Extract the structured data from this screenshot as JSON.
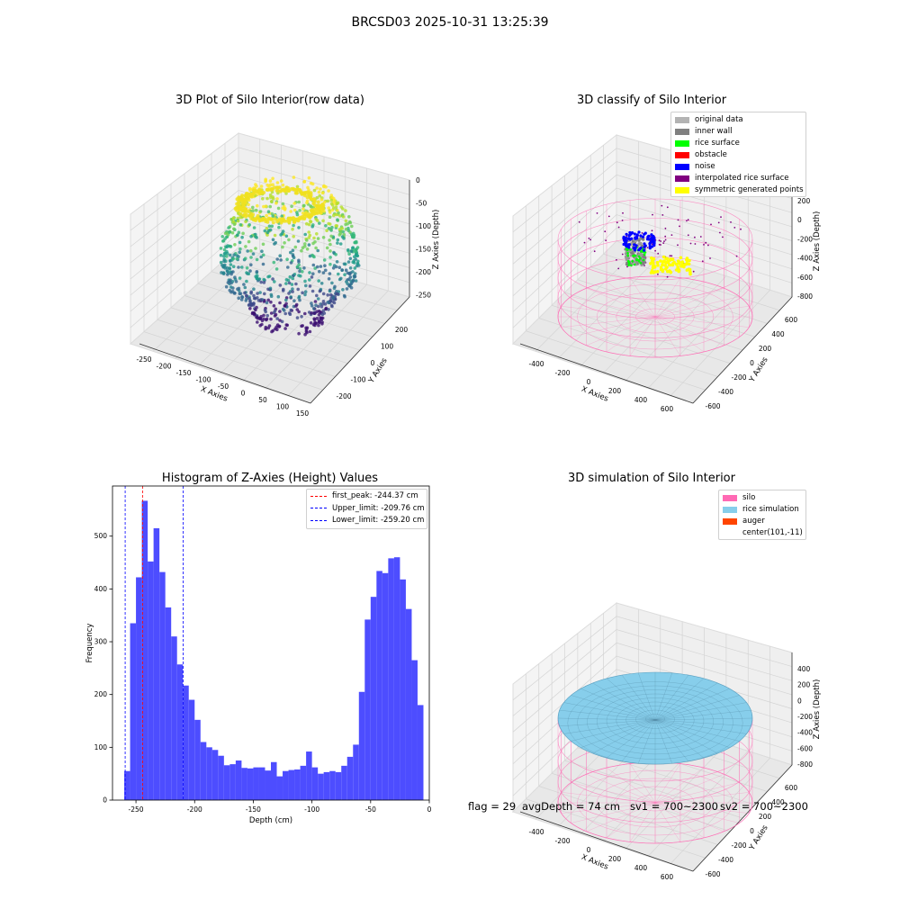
{
  "suptitle": "BRCSD03 2025-10-31 13:25:39",
  "panels": {
    "raw": {
      "title": "3D Plot of Silo Interior(row data)",
      "xlabel": "X Axies",
      "ylabel": "Y Axies",
      "zlabel": "Z Axies (Depth)",
      "xticks": [
        "-250",
        "-200",
        "-150",
        "-100",
        "-50",
        "0",
        "50",
        "100",
        "150"
      ],
      "yticks": [
        "200",
        "100",
        "0",
        "-100",
        "-200"
      ],
      "zticks": [
        "0",
        "-50",
        "-100",
        "-150",
        "-200",
        "-250"
      ]
    },
    "classify": {
      "title": "3D classify of Silo Interior",
      "xlabel": "X Axies",
      "ylabel": "Y Axies",
      "zlabel": "Z Axies (Depth)",
      "xticks": [
        "-400",
        "-200",
        "0",
        "200",
        "400",
        "600"
      ],
      "yticks": [
        "600",
        "400",
        "200",
        "0",
        "-200",
        "-400",
        "-600"
      ],
      "zticks": [
        "200",
        "0",
        "-200",
        "-400",
        "-600",
        "-800"
      ],
      "legend": [
        {
          "label": "original data",
          "color": "#b3b3b3"
        },
        {
          "label": "inner wall",
          "color": "#808080"
        },
        {
          "label": "rice surface",
          "color": "#00ff00"
        },
        {
          "label": "obstacle",
          "color": "#ff0000"
        },
        {
          "label": "noise",
          "color": "#0000ff"
        },
        {
          "label": "interpolated rice surface",
          "color": "#800080"
        },
        {
          "label": "symmetric generated points",
          "color": "#ffff00"
        }
      ]
    },
    "simulation": {
      "title": "3D simulation of Silo Interior",
      "xlabel": "X Axies",
      "ylabel": "Y Axies",
      "zlabel": "Z Axies (Depth)",
      "xticks": [
        "-400",
        "-200",
        "0",
        "200",
        "400",
        "600"
      ],
      "yticks": [
        "600",
        "400",
        "200",
        "0",
        "-200",
        "-400",
        "-600"
      ],
      "zticks": [
        "400",
        "200",
        "0",
        "-200",
        "-400",
        "-600",
        "-800"
      ],
      "legend": [
        {
          "label": "silo",
          "color": "#ff69b4"
        },
        {
          "label": "rice simulation",
          "color": "#87ceeb"
        },
        {
          "label": "auger",
          "color": "#ff4500"
        },
        {
          "label": "center(101,-11)",
          "color": ""
        }
      ]
    }
  },
  "footer": {
    "flag": "flag = 29",
    "avg": "avgDepth = 74 cm",
    "sv1": "sv1 = 700~2300",
    "sv2": "sv2 = 700~2300"
  },
  "chart_data": {
    "type": "bar",
    "title": "Histogram of Z-Axies (Height) Values",
    "xlabel": "Depth (cm)",
    "ylabel": "Frequency",
    "xlim": [
      -270,
      0
    ],
    "ylim": [
      0,
      595
    ],
    "xticks": [
      -250,
      -200,
      -150,
      -100,
      -50,
      0
    ],
    "yticks": [
      0,
      100,
      200,
      300,
      400,
      500
    ],
    "bin_start": -260,
    "bin_width": 5,
    "bar_color": "#4d4dff",
    "values": [
      55,
      335,
      422,
      567,
      452,
      515,
      432,
      365,
      310,
      257,
      217,
      190,
      152,
      110,
      100,
      95,
      84,
      66,
      68,
      75,
      61,
      60,
      62,
      62,
      56,
      72,
      45,
      55,
      57,
      58,
      65,
      92,
      62,
      50,
      53,
      55,
      53,
      65,
      82,
      105,
      205,
      342,
      385,
      434,
      430,
      458,
      460,
      418,
      362,
      265,
      180
    ],
    "lines": [
      {
        "label": "first_peak: -244.37 cm",
        "x": -244.37,
        "color": "#ff0000"
      },
      {
        "label": "Upper_limit: -209.76 cm",
        "x": -209.76,
        "color": "#0000ff"
      },
      {
        "label": "Lower_limit: -259.20 cm",
        "x": -259.2,
        "color": "#0000ff"
      }
    ],
    "legend_position": "top-right"
  }
}
